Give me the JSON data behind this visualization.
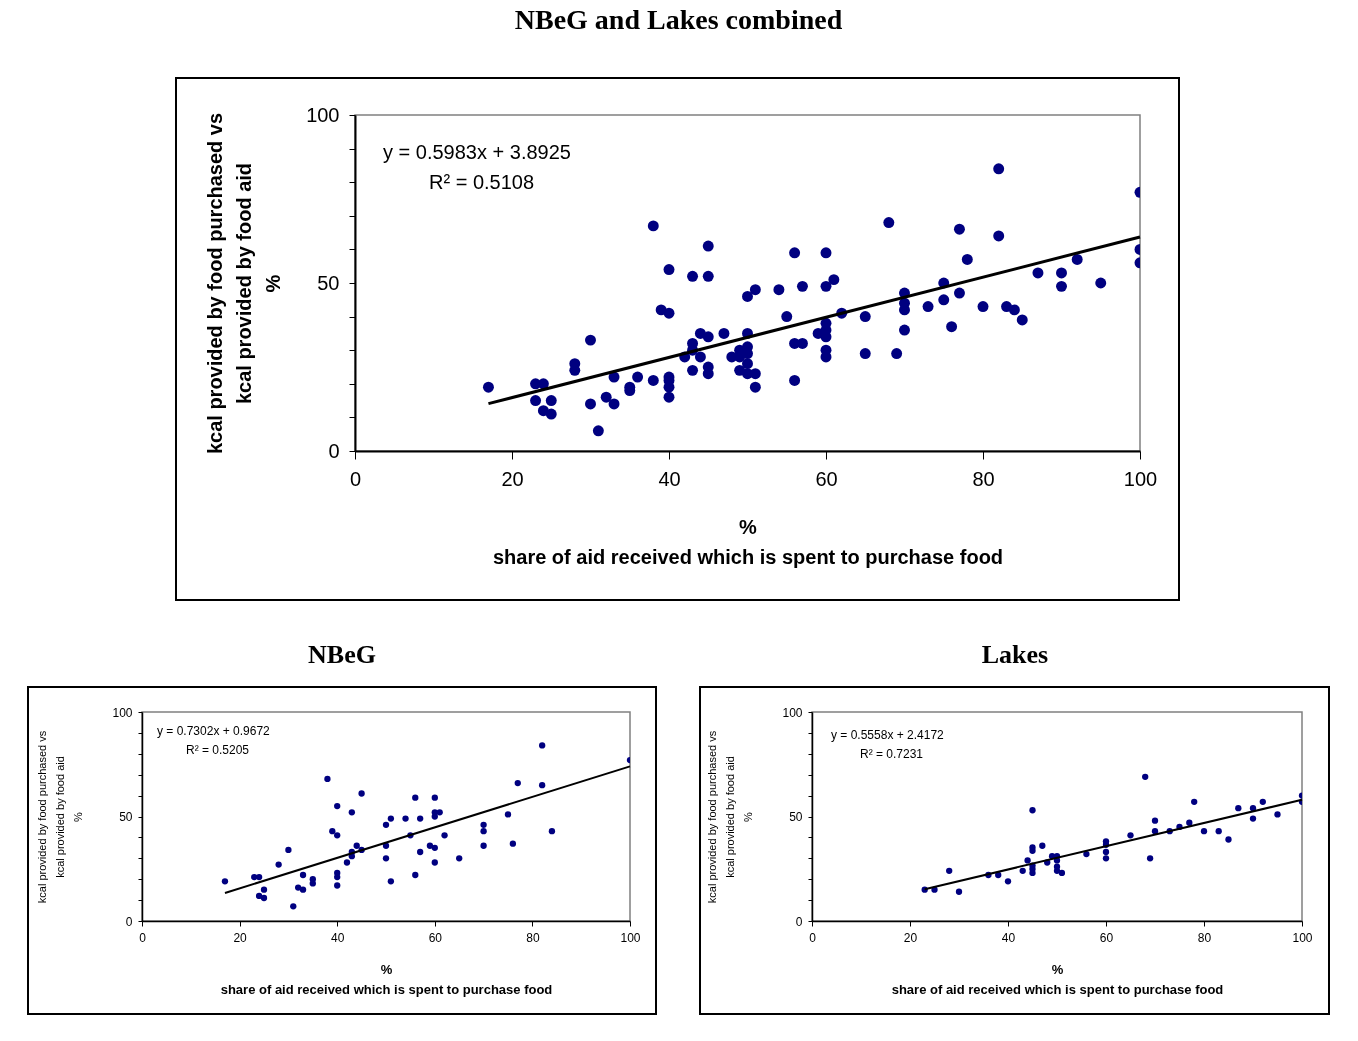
{
  "chart_data": [
    {
      "type": "scatter",
      "title": "NBeG and Lakes combined",
      "xlabel": "%\nshare of aid received which is spent to purchase food",
      "ylabel": "kcal provided by food purchased vs\nkcal provided by food aid\n%",
      "annotations": [
        "y = 0.5983x + 3.8925",
        "R² = 0.5108"
      ],
      "xlim": [
        0,
        100
      ],
      "xticks": [
        0,
        20,
        40,
        60,
        80,
        100
      ],
      "ylim": [
        0,
        100
      ],
      "yticks": [
        0,
        {
          "value": 10,
          "label": null
        },
        {
          "value": 20,
          "label": null
        },
        {
          "value": 30,
          "label": null
        },
        {
          "value": 40,
          "label": null
        },
        50,
        {
          "value": 60,
          "label": null
        },
        {
          "value": 70,
          "label": null
        },
        {
          "value": 80,
          "label": null
        },
        {
          "value": 90,
          "label": null
        },
        100
      ],
      "series": [
        {
          "color": "#000080",
          "marker": "circle",
          "x": [
            17,
            23,
            24,
            23,
            25,
            24,
            25,
            28,
            28,
            30,
            30,
            32,
            33,
            33,
            31,
            35,
            35,
            36,
            38,
            38,
            39,
            40,
            40,
            40,
            40,
            40,
            40,
            42,
            43,
            43,
            43,
            43,
            44,
            45,
            45,
            45,
            45,
            45,
            44,
            47,
            48,
            49,
            49,
            49,
            50,
            50,
            50,
            50,
            50,
            50,
            51,
            51,
            51,
            54,
            55,
            56,
            56,
            56,
            57,
            57,
            59,
            60,
            60,
            60,
            60,
            60,
            60,
            60,
            61,
            62,
            65,
            65,
            68,
            69,
            70,
            70,
            70,
            70,
            73,
            75,
            75,
            76,
            77,
            77,
            78,
            80,
            82,
            82,
            83,
            84,
            85,
            87,
            90,
            90,
            92,
            95,
            100,
            100,
            100
          ],
          "values": [
            19,
            20,
            20,
            15,
            15,
            12,
            11,
            26,
            24,
            33,
            14,
            16,
            14,
            22,
            6,
            19,
            18,
            22,
            21,
            67,
            42,
            41,
            54,
            22,
            21,
            19,
            16,
            28,
            52,
            32,
            30,
            24,
            35,
            61,
            52,
            34,
            25,
            23,
            28,
            35,
            28,
            30,
            28,
            24,
            46,
            35,
            31,
            29,
            26,
            23,
            48,
            23,
            19,
            48,
            40,
            59,
            32,
            21,
            49,
            32,
            35,
            59,
            49,
            38,
            36,
            34,
            30,
            28,
            51,
            41,
            40,
            29,
            68,
            29,
            47,
            44,
            42,
            36,
            43,
            45,
            50,
            37,
            47,
            66,
            57,
            43,
            64,
            84,
            43,
            42,
            39,
            53,
            53,
            49,
            57,
            50,
            77,
            60,
            56
          ]
        },
        {
          "type": "line",
          "color": "#000000",
          "x": [
            17,
            100
          ],
          "values": [
            14.1,
            63.7
          ]
        }
      ]
    },
    {
      "type": "scatter",
      "title": "NBeG",
      "xlabel": "%\nshare of aid received which is spent to purchase food",
      "ylabel": "kcal provided by food purchased vs\nkcal provided by food aid\n%",
      "annotations": [
        "y = 0.7302x + 0.9672",
        "R² = 0.5205"
      ],
      "xlim": [
        0,
        100
      ],
      "xticks": [
        0,
        20,
        40,
        60,
        80,
        100
      ],
      "ylim": [
        0,
        100
      ],
      "yticks": [
        0,
        {
          "value": 10,
          "label": null
        },
        {
          "value": 20,
          "label": null
        },
        {
          "value": 30,
          "label": null
        },
        {
          "value": 40,
          "label": null
        },
        50,
        {
          "value": 60,
          "label": null
        },
        {
          "value": 70,
          "label": null
        },
        {
          "value": 80,
          "label": null
        },
        {
          "value": 90,
          "label": null
        },
        100
      ],
      "series": [
        {
          "color": "#000080",
          "marker": "circle",
          "x": [
            17,
            23,
            24,
            24,
            25,
            25,
            28,
            30,
            31,
            32,
            33,
            33,
            35,
            35,
            38,
            39,
            40,
            40,
            40,
            40,
            40,
            42,
            43,
            43,
            43,
            44,
            45,
            45,
            50,
            50,
            50,
            51,
            51,
            54,
            55,
            56,
            57,
            56,
            57,
            59,
            60,
            60,
            60,
            60,
            60,
            61,
            62,
            65,
            70,
            70,
            70,
            75,
            76,
            77,
            82,
            82,
            84,
            100
          ],
          "values": [
            19,
            21,
            21,
            12,
            11,
            15,
            27,
            34,
            7,
            16,
            22,
            15,
            20,
            18,
            68,
            43,
            55,
            41,
            23,
            21,
            17,
            28,
            52,
            33,
            31,
            36,
            61,
            34,
            46,
            36,
            30,
            49,
            19,
            49,
            41,
            59,
            33,
            22,
            49,
            36,
            59,
            50,
            52,
            35,
            28,
            52,
            41,
            30,
            46,
            43,
            36,
            51,
            37,
            66,
            84,
            65,
            43,
            77
          ]
        },
        {
          "type": "line",
          "color": "#000000",
          "x": [
            17,
            100
          ],
          "values": [
            13.4,
            74.0
          ]
        }
      ]
    },
    {
      "type": "scatter",
      "title": "Lakes",
      "xlabel": "%\nshare of aid received which is spent to purchase food",
      "ylabel": "kcal provided by food purchased vs\nkcal provided by food aid\n%",
      "annotations": [
        "y = 0.5558x + 2.4172",
        "R² = 0.7231"
      ],
      "xlim": [
        0,
        100
      ],
      "xticks": [
        0,
        20,
        40,
        60,
        80,
        100
      ],
      "ylim": [
        0,
        100
      ],
      "yticks": [
        0,
        {
          "value": 10,
          "label": null
        },
        {
          "value": 20,
          "label": null
        },
        {
          "value": 30,
          "label": null
        },
        {
          "value": 40,
          "label": null
        },
        50,
        {
          "value": 60,
          "label": null
        },
        {
          "value": 70,
          "label": null
        },
        {
          "value": 80,
          "label": null
        },
        {
          "value": 90,
          "label": null
        },
        100
      ],
      "series": [
        {
          "color": "#000080",
          "marker": "circle",
          "x": [
            23,
            25,
            28,
            30,
            36,
            38,
            40,
            43,
            44,
            45,
            45,
            45,
            45,
            45,
            45,
            47,
            48,
            49,
            50,
            50,
            50,
            50,
            51,
            56,
            60,
            60,
            60,
            60,
            65,
            68,
            69,
            70,
            70,
            73,
            75,
            77,
            78,
            80,
            83,
            85,
            87,
            90,
            90,
            92,
            95,
            100,
            100
          ],
          "values": [
            15,
            15,
            24,
            14,
            22,
            22,
            19,
            24,
            29,
            53,
            35.2,
            33.6,
            26.5,
            24.9,
            23,
            36,
            28,
            31,
            31,
            29,
            26,
            24,
            23,
            32,
            38.1,
            36.5,
            33,
            30,
            41,
            69,
            30,
            48,
            43,
            43,
            45,
            47,
            57,
            43,
            43,
            39,
            54,
            54,
            49,
            57,
            51,
            60,
            57
          ]
        },
        {
          "type": "line",
          "color": "#000000",
          "x": [
            23,
            100
          ],
          "values": [
            15.2,
            58.0
          ]
        }
      ]
    }
  ]
}
